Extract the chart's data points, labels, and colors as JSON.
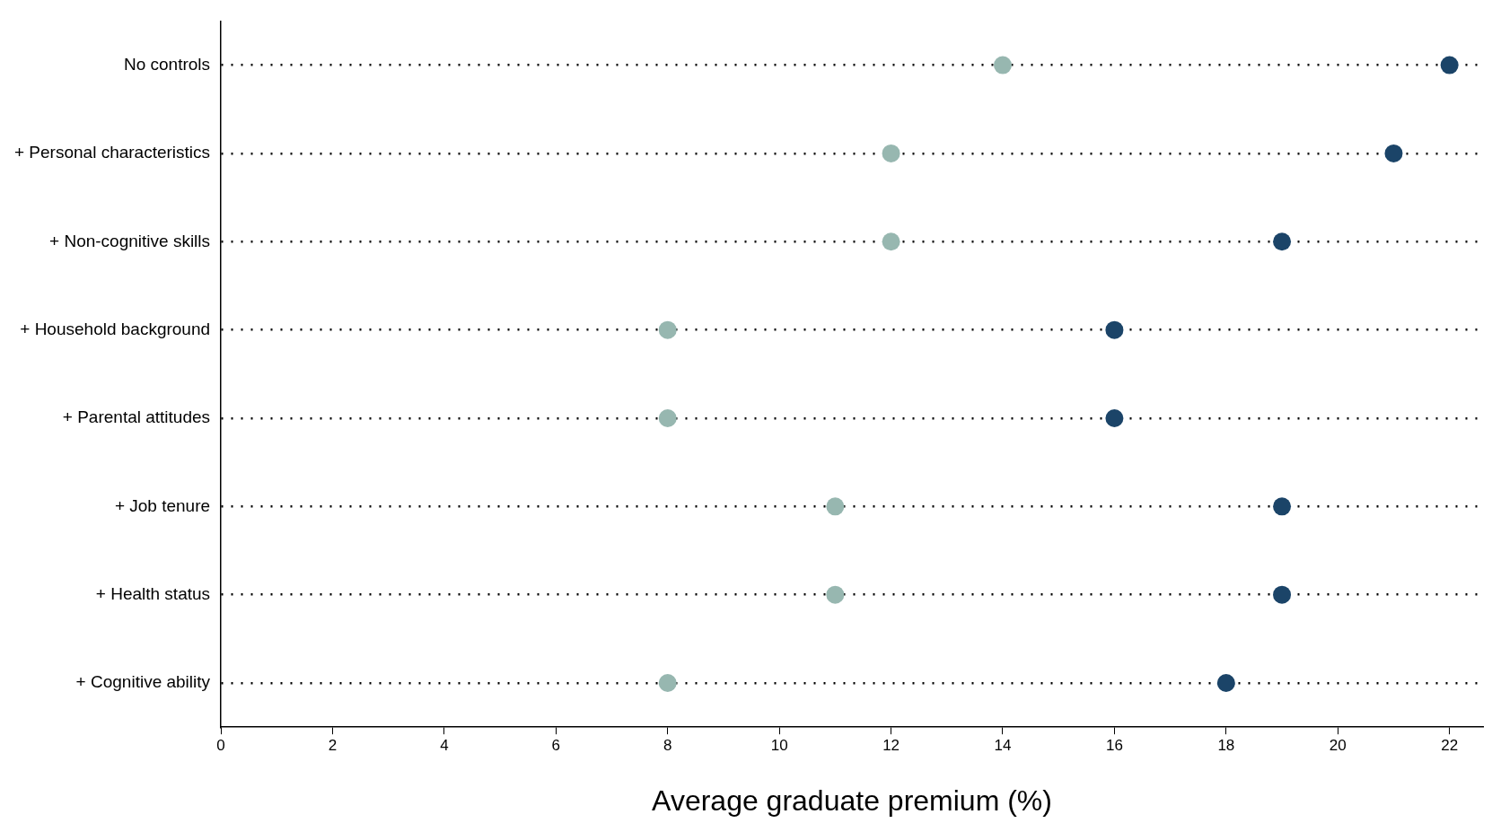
{
  "chart_data": {
    "type": "scatter",
    "orientation": "horizontal",
    "xlabel": "Average graduate premium (%)",
    "categories": [
      "No controls",
      "+ Personal characteristics",
      "+ Non-cognitive skills",
      "+ Household background",
      "+ Parental attitudes",
      "+ Job tenure",
      "+ Health status",
      "+ Cognitive ability"
    ],
    "series": [
      {
        "color": "#97b7b0",
        "values": [
          14,
          12,
          12,
          8,
          8,
          11,
          11,
          8
        ]
      },
      {
        "color": "#1b4468",
        "values": [
          22,
          21,
          19,
          16,
          16,
          19,
          19,
          18
        ]
      }
    ],
    "xlim": [
      0,
      22.6
    ],
    "xticks": [
      0,
      2,
      4,
      6,
      8,
      10,
      12,
      14,
      16,
      18,
      20,
      22
    ],
    "grid": "y",
    "legend": false,
    "marker": "circle"
  }
}
